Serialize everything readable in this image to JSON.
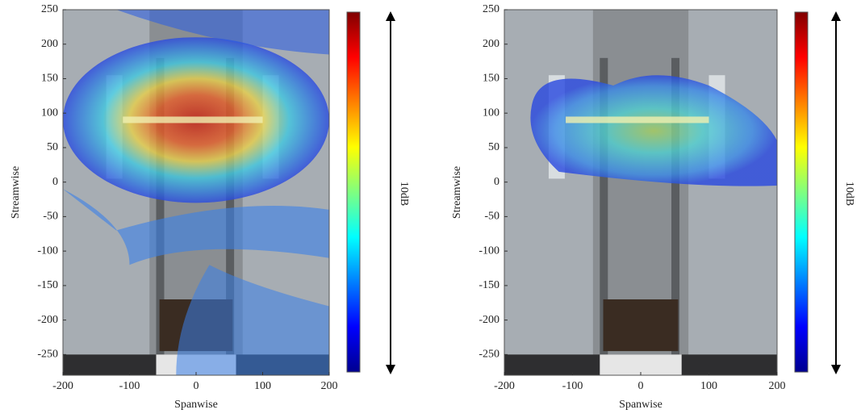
{
  "chart_data": [
    {
      "type": "heatmap",
      "xlabel": "Spanwise",
      "ylabel": "Streamwise",
      "xlim": [
        -200,
        200
      ],
      "ylim": [
        -280,
        250
      ],
      "xticks": [
        -200,
        -100,
        0,
        100,
        200
      ],
      "yticks": [
        250,
        200,
        150,
        100,
        50,
        0,
        -50,
        -100,
        -150,
        -200,
        -250
      ],
      "colorbar_label": "10dB"
    },
    {
      "type": "heatmap",
      "xlabel": "Spanwise",
      "ylabel": "Streamwise",
      "xlim": [
        -200,
        200
      ],
      "ylim": [
        -280,
        250
      ],
      "xticks": [
        -200,
        -100,
        0,
        100,
        200
      ],
      "yticks": [
        250,
        200,
        150,
        100,
        50,
        0,
        -50,
        -100,
        -150,
        -200,
        -250
      ],
      "colorbar_label": "10dB"
    }
  ]
}
